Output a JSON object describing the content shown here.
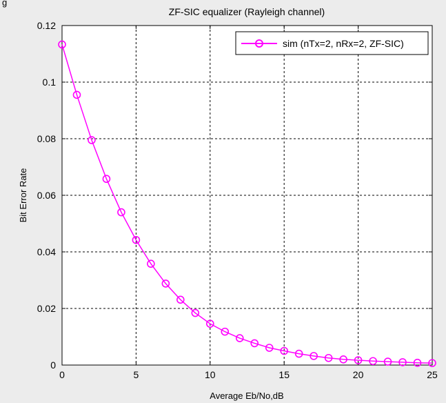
{
  "window": {
    "fragment_label": "g"
  },
  "chart_data": {
    "type": "line",
    "title": "ZF-SIC equalizer (Rayleigh channel)",
    "xlabel": "Average Eb/No,dB",
    "ylabel": "Bit Error Rate",
    "xlim": [
      0,
      25
    ],
    "ylim": [
      0,
      0.12
    ],
    "xticks": [
      0,
      5,
      10,
      15,
      20,
      25
    ],
    "yticks": [
      0,
      0.02,
      0.04,
      0.06,
      0.08,
      0.1,
      0.12
    ],
    "grid": true,
    "legend_position": "top-right",
    "series": [
      {
        "name": "sim (nTx=2, nRx=2, ZF-SIC)",
        "color": "#ff00ff",
        "marker": "circle",
        "x": [
          0,
          1,
          2,
          3,
          4,
          5,
          6,
          7,
          8,
          9,
          10,
          11,
          12,
          13,
          14,
          15,
          16,
          17,
          18,
          19,
          20,
          21,
          22,
          23,
          24,
          25
        ],
        "values": [
          0.1133,
          0.0955,
          0.0795,
          0.0658,
          0.054,
          0.0442,
          0.0358,
          0.0288,
          0.0231,
          0.0184,
          0.0146,
          0.0118,
          0.0095,
          0.0077,
          0.0061,
          0.005,
          0.004,
          0.0032,
          0.0025,
          0.002,
          0.0017,
          0.0014,
          0.0012,
          0.001,
          0.0008,
          0.0007
        ]
      }
    ]
  }
}
